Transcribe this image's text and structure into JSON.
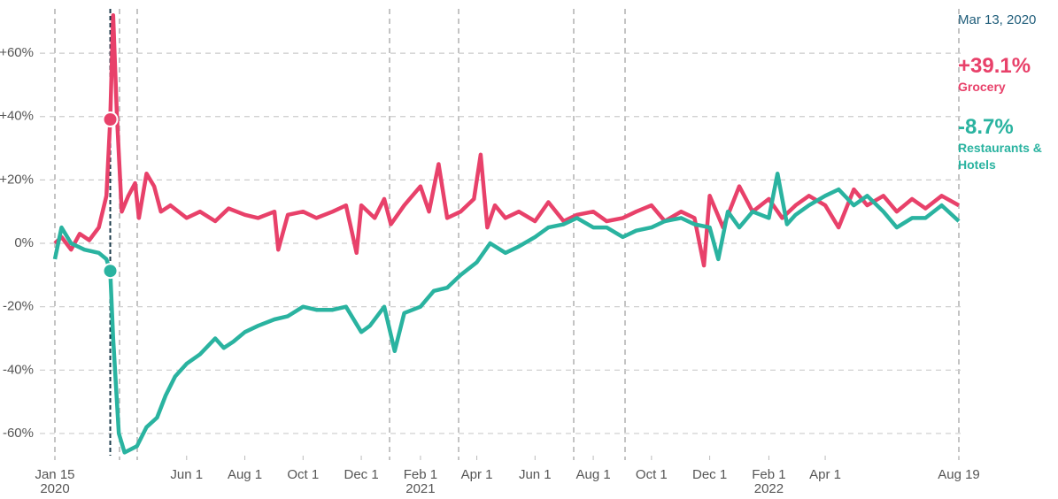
{
  "chart_data": {
    "type": "line",
    "xlim": [
      "2020-01-15",
      "2022-08-19"
    ],
    "ylim": [
      -67,
      74
    ],
    "yticks": [
      {
        "value": 60,
        "label": "+60%"
      },
      {
        "value": 40,
        "label": "+40%"
      },
      {
        "value": 20,
        "label": "+20%"
      },
      {
        "value": 0,
        "label": "0%"
      },
      {
        "value": -20,
        "label": "-20%"
      },
      {
        "value": -40,
        "label": "-40%"
      },
      {
        "value": -60,
        "label": "-60%"
      }
    ],
    "xticks": [
      {
        "value": "2020-01-15",
        "label": "Jan 15",
        "year": "2020"
      },
      {
        "value": "2020-06-01",
        "label": "Jun 1"
      },
      {
        "value": "2020-08-01",
        "label": "Aug 1"
      },
      {
        "value": "2020-10-01",
        "label": "Oct 1"
      },
      {
        "value": "2020-12-01",
        "label": "Dec 1"
      },
      {
        "value": "2021-02-01",
        "label": "Feb 1",
        "year": "2021"
      },
      {
        "value": "2021-04-01",
        "label": "Apr 1"
      },
      {
        "value": "2021-06-01",
        "label": "Jun 1"
      },
      {
        "value": "2021-08-01",
        "label": "Aug 1"
      },
      {
        "value": "2021-10-01",
        "label": "Oct 1"
      },
      {
        "value": "2021-12-01",
        "label": "Dec 1"
      },
      {
        "value": "2022-02-01",
        "label": "Feb 1",
        "year": "2022"
      },
      {
        "value": "2022-04-01",
        "label": "Apr 1"
      },
      {
        "value": "2022-08-19",
        "label": "Aug 19"
      }
    ],
    "grid": true,
    "highlight": {
      "date": "2020-03-13",
      "label": "Mar 13, 2020",
      "color": "#1a3a4a",
      "items": [
        {
          "name": "Grocery",
          "value": 39.1,
          "label": "+39.1%"
        },
        {
          "name": "Restaurants & Hotels",
          "value": -8.7,
          "label": "-8.7%"
        }
      ]
    },
    "series": [
      {
        "name": "Grocery",
        "color": "#e8416a",
        "x": [
          "2020-01-15",
          "2020-01-22",
          "2020-02-01",
          "2020-02-10",
          "2020-02-20",
          "2020-03-01",
          "2020-03-09",
          "2020-03-13",
          "2020-03-16",
          "2020-03-20",
          "2020-03-25",
          "2020-04-01",
          "2020-04-08",
          "2020-04-12",
          "2020-04-20",
          "2020-04-28",
          "2020-05-05",
          "2020-05-15",
          "2020-06-01",
          "2020-06-15",
          "2020-07-01",
          "2020-07-15",
          "2020-08-01",
          "2020-08-15",
          "2020-09-01",
          "2020-09-05",
          "2020-09-15",
          "2020-10-01",
          "2020-10-15",
          "2020-11-01",
          "2020-11-15",
          "2020-11-26",
          "2020-12-01",
          "2020-12-15",
          "2020-12-25",
          "2021-01-01",
          "2021-01-15",
          "2021-02-01",
          "2021-02-10",
          "2021-02-20",
          "2021-03-01",
          "2021-03-15",
          "2021-03-29",
          "2021-04-05",
          "2021-04-12",
          "2021-04-20",
          "2021-05-01",
          "2021-05-15",
          "2021-06-01",
          "2021-06-15",
          "2021-07-01",
          "2021-07-15",
          "2021-08-01",
          "2021-08-15",
          "2021-09-01",
          "2021-09-15",
          "2021-10-01",
          "2021-10-15",
          "2021-11-01",
          "2021-11-15",
          "2021-11-25",
          "2021-12-01",
          "2021-12-15",
          "2022-01-01",
          "2022-01-15",
          "2022-02-01",
          "2022-02-15",
          "2022-03-01",
          "2022-03-15",
          "2022-04-01",
          "2022-04-15",
          "2022-05-01",
          "2022-05-15",
          "2022-06-01",
          "2022-06-15",
          "2022-07-01",
          "2022-07-15",
          "2022-08-01",
          "2022-08-19"
        ],
        "values": [
          0,
          2,
          -2,
          3,
          1,
          5,
          15,
          39.1,
          72,
          40,
          10,
          15,
          19,
          8,
          22,
          18,
          10,
          12,
          8,
          10,
          7,
          11,
          9,
          8,
          10,
          -2,
          9,
          10,
          8,
          10,
          12,
          -3,
          12,
          8,
          14,
          6,
          12,
          18,
          10,
          25,
          8,
          10,
          14,
          28,
          5,
          12,
          8,
          10,
          7,
          13,
          7,
          9,
          10,
          7,
          8,
          10,
          12,
          7,
          10,
          8,
          -7,
          15,
          5,
          18,
          10,
          14,
          8,
          12,
          15,
          12,
          5,
          17,
          12,
          15,
          10,
          14,
          11,
          15,
          12
        ]
      },
      {
        "name": "Restaurants & Hotels",
        "color": "#2ab3a0",
        "x": [
          "2020-01-15",
          "2020-01-22",
          "2020-02-01",
          "2020-02-15",
          "2020-03-01",
          "2020-03-09",
          "2020-03-13",
          "2020-03-16",
          "2020-03-22",
          "2020-03-28",
          "2020-04-10",
          "2020-04-20",
          "2020-05-01",
          "2020-05-10",
          "2020-05-20",
          "2020-06-01",
          "2020-06-15",
          "2020-07-01",
          "2020-07-10",
          "2020-07-20",
          "2020-08-01",
          "2020-08-15",
          "2020-09-01",
          "2020-09-15",
          "2020-10-01",
          "2020-10-15",
          "2020-11-01",
          "2020-11-15",
          "2020-12-01",
          "2020-12-10",
          "2020-12-25",
          "2021-01-05",
          "2021-01-15",
          "2021-02-01",
          "2021-02-15",
          "2021-03-01",
          "2021-03-15",
          "2021-04-01",
          "2021-04-15",
          "2021-05-01",
          "2021-05-15",
          "2021-06-01",
          "2021-06-15",
          "2021-07-01",
          "2021-07-15",
          "2021-08-01",
          "2021-08-15",
          "2021-09-01",
          "2021-09-15",
          "2021-10-01",
          "2021-10-15",
          "2021-11-01",
          "2021-11-15",
          "2021-12-01",
          "2021-12-10",
          "2021-12-20",
          "2022-01-01",
          "2022-01-15",
          "2022-02-01",
          "2022-02-10",
          "2022-02-20",
          "2022-03-01",
          "2022-03-15",
          "2022-04-01",
          "2022-04-15",
          "2022-05-01",
          "2022-05-15",
          "2022-06-01",
          "2022-06-15",
          "2022-07-01",
          "2022-07-15",
          "2022-08-01",
          "2022-08-19"
        ],
        "values": [
          -5,
          5,
          0,
          -2,
          -3,
          -5,
          -8.7,
          -30,
          -60,
          -66,
          -64,
          -58,
          -55,
          -48,
          -42,
          -38,
          -35,
          -30,
          -33,
          -31,
          -28,
          -26,
          -24,
          -23,
          -20,
          -21,
          -21,
          -20,
          -28,
          -26,
          -20,
          -34,
          -22,
          -20,
          -15,
          -14,
          -10,
          -6,
          0,
          -3,
          -1,
          2,
          5,
          6,
          8,
          5,
          5,
          2,
          4,
          5,
          7,
          8,
          6,
          5,
          -5,
          10,
          5,
          10,
          8,
          22,
          6,
          9,
          12,
          15,
          17,
          12,
          15,
          10,
          5,
          8,
          8,
          12,
          7
        ]
      }
    ]
  }
}
